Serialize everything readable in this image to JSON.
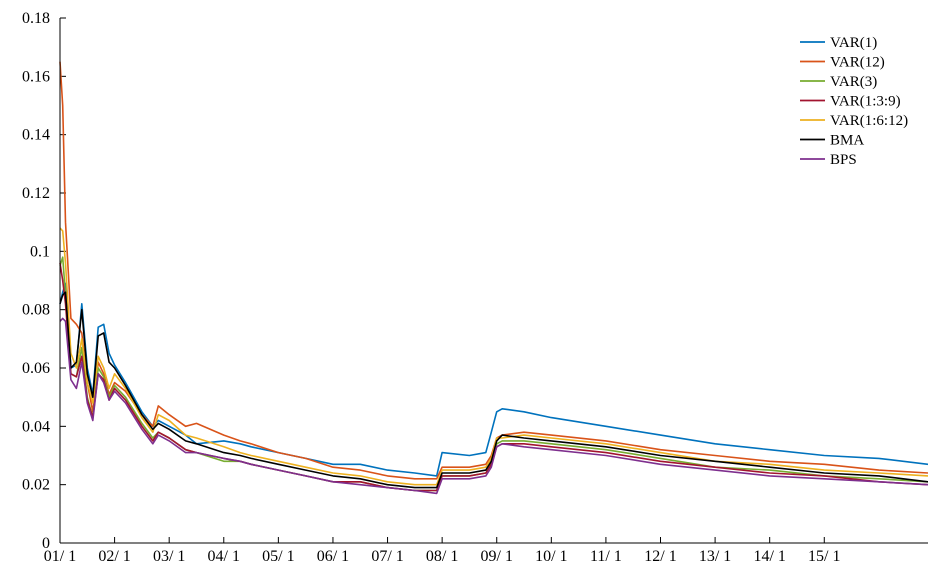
{
  "chart_data": {
    "type": "line",
    "title": "",
    "xlabel": "",
    "ylabel": "",
    "xlim": [
      0,
      15.9
    ],
    "ylim": [
      0,
      0.18
    ],
    "grid": false,
    "legend": "top-right",
    "xticks": [
      {
        "value": 0,
        "label": "01/ 1"
      },
      {
        "value": 1,
        "label": "02/ 1"
      },
      {
        "value": 2,
        "label": "03/ 1"
      },
      {
        "value": 3,
        "label": "04/ 1"
      },
      {
        "value": 4,
        "label": "05/ 1"
      },
      {
        "value": 5,
        "label": "06/ 1"
      },
      {
        "value": 6,
        "label": "07/ 1"
      },
      {
        "value": 7,
        "label": "08/ 1"
      },
      {
        "value": 8,
        "label": "09/ 1"
      },
      {
        "value": 9,
        "label": "10/ 1"
      },
      {
        "value": 10,
        "label": "11/ 1"
      },
      {
        "value": 11,
        "label": "12/ 1"
      },
      {
        "value": 12,
        "label": "13/ 1"
      },
      {
        "value": 13,
        "label": "14/ 1"
      },
      {
        "value": 14,
        "label": "15/ 1"
      }
    ],
    "yticks": [
      {
        "value": 0,
        "label": "0"
      },
      {
        "value": 0.02,
        "label": "0.02"
      },
      {
        "value": 0.04,
        "label": "0.04"
      },
      {
        "value": 0.06,
        "label": "0.06"
      },
      {
        "value": 0.08,
        "label": "0.08"
      },
      {
        "value": 0.1,
        "label": "0.1"
      },
      {
        "value": 0.12,
        "label": "0.12"
      },
      {
        "value": 0.14,
        "label": "0.14"
      },
      {
        "value": 0.16,
        "label": "0.16"
      },
      {
        "value": 0.18,
        "label": "0.18"
      }
    ],
    "x": [
      0,
      0.05,
      0.1,
      0.2,
      0.3,
      0.4,
      0.5,
      0.6,
      0.7,
      0.8,
      0.9,
      1.0,
      1.2,
      1.5,
      1.7,
      1.8,
      2.0,
      2.3,
      2.5,
      3.0,
      3.3,
      3.5,
      4.0,
      4.5,
      5.0,
      5.5,
      6.0,
      6.5,
      6.9,
      7.0,
      7.5,
      7.8,
      7.9,
      8.0,
      8.1,
      8.5,
      9.0,
      10.0,
      11.0,
      12.0,
      13.0,
      14.0,
      15.0,
      15.9
    ],
    "series": [
      {
        "name": "VAR(1)",
        "color": "#0072BD",
        "values": [
          0.082,
          0.086,
          0.089,
          0.06,
          0.061,
          0.082,
          0.06,
          0.051,
          0.074,
          0.075,
          0.065,
          0.061,
          0.055,
          0.045,
          0.04,
          0.042,
          0.04,
          0.037,
          0.034,
          0.035,
          0.034,
          0.033,
          0.031,
          0.029,
          0.027,
          0.027,
          0.025,
          0.024,
          0.023,
          0.031,
          0.03,
          0.031,
          0.038,
          0.045,
          0.046,
          0.045,
          0.043,
          0.04,
          0.037,
          0.034,
          0.032,
          0.03,
          0.029,
          0.027
        ]
      },
      {
        "name": "VAR(12)",
        "color": "#D95319",
        "values": [
          0.165,
          0.15,
          0.11,
          0.077,
          0.075,
          0.072,
          0.055,
          0.045,
          0.062,
          0.058,
          0.051,
          0.055,
          0.052,
          0.044,
          0.04,
          0.047,
          0.044,
          0.04,
          0.041,
          0.037,
          0.035,
          0.034,
          0.031,
          0.029,
          0.026,
          0.025,
          0.023,
          0.022,
          0.022,
          0.026,
          0.026,
          0.027,
          0.03,
          0.036,
          0.037,
          0.038,
          0.037,
          0.035,
          0.032,
          0.03,
          0.028,
          0.027,
          0.025,
          0.024
        ]
      },
      {
        "name": "VAR(3)",
        "color": "#77AC30",
        "values": [
          0.095,
          0.098,
          0.085,
          0.058,
          0.057,
          0.067,
          0.05,
          0.043,
          0.06,
          0.057,
          0.05,
          0.054,
          0.05,
          0.041,
          0.036,
          0.038,
          0.036,
          0.032,
          0.031,
          0.028,
          0.028,
          0.027,
          0.025,
          0.023,
          0.021,
          0.021,
          0.019,
          0.018,
          0.018,
          0.023,
          0.023,
          0.024,
          0.027,
          0.034,
          0.035,
          0.035,
          0.034,
          0.032,
          0.029,
          0.026,
          0.025,
          0.023,
          0.022,
          0.021
        ]
      },
      {
        "name": "VAR(1:3:9)",
        "color": "#A2142F",
        "values": [
          0.096,
          0.09,
          0.082,
          0.058,
          0.057,
          0.064,
          0.049,
          0.043,
          0.058,
          0.056,
          0.049,
          0.053,
          0.049,
          0.04,
          0.035,
          0.038,
          0.036,
          0.032,
          0.031,
          0.029,
          0.028,
          0.027,
          0.025,
          0.023,
          0.021,
          0.021,
          0.019,
          0.018,
          0.018,
          0.023,
          0.023,
          0.024,
          0.027,
          0.033,
          0.034,
          0.034,
          0.033,
          0.031,
          0.028,
          0.026,
          0.024,
          0.023,
          0.021,
          0.02
        ]
      },
      {
        "name": "VAR(1:6:12)",
        "color": "#EDB120",
        "values": [
          0.108,
          0.107,
          0.096,
          0.065,
          0.06,
          0.07,
          0.055,
          0.048,
          0.064,
          0.06,
          0.053,
          0.058,
          0.053,
          0.043,
          0.038,
          0.044,
          0.042,
          0.037,
          0.036,
          0.033,
          0.031,
          0.03,
          0.028,
          0.026,
          0.024,
          0.023,
          0.021,
          0.02,
          0.02,
          0.025,
          0.025,
          0.026,
          0.029,
          0.036,
          0.036,
          0.037,
          0.036,
          0.034,
          0.031,
          0.028,
          0.027,
          0.025,
          0.024,
          0.023
        ]
      },
      {
        "name": "BMA",
        "color": "#000000",
        "values": [
          0.082,
          0.085,
          0.086,
          0.06,
          0.062,
          0.08,
          0.058,
          0.05,
          0.071,
          0.072,
          0.062,
          0.06,
          0.054,
          0.044,
          0.039,
          0.041,
          0.039,
          0.035,
          0.034,
          0.031,
          0.03,
          0.029,
          0.027,
          0.025,
          0.023,
          0.022,
          0.02,
          0.019,
          0.019,
          0.024,
          0.024,
          0.025,
          0.028,
          0.035,
          0.037,
          0.036,
          0.035,
          0.033,
          0.03,
          0.028,
          0.026,
          0.024,
          0.023,
          0.021
        ]
      },
      {
        "name": "BPS",
        "color": "#7E2F8E",
        "values": [
          0.076,
          0.077,
          0.076,
          0.056,
          0.053,
          0.062,
          0.048,
          0.042,
          0.058,
          0.055,
          0.049,
          0.052,
          0.048,
          0.039,
          0.034,
          0.037,
          0.035,
          0.031,
          0.031,
          0.029,
          0.028,
          0.027,
          0.025,
          0.023,
          0.021,
          0.02,
          0.019,
          0.018,
          0.017,
          0.022,
          0.022,
          0.023,
          0.026,
          0.033,
          0.034,
          0.033,
          0.032,
          0.03,
          0.027,
          0.025,
          0.023,
          0.022,
          0.021,
          0.02
        ]
      }
    ]
  }
}
